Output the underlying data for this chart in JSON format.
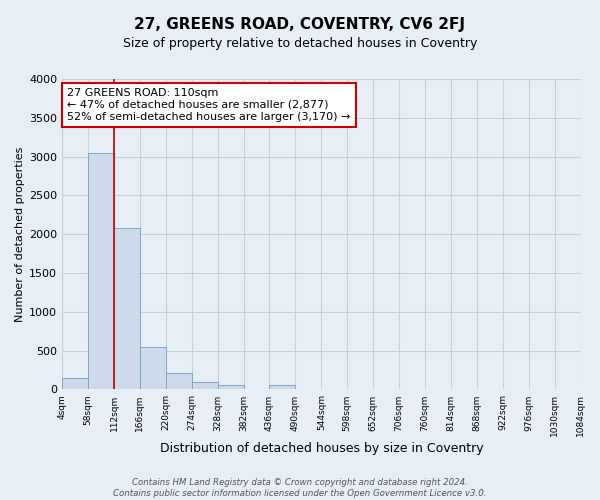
{
  "title": "27, GREENS ROAD, COVENTRY, CV6 2FJ",
  "subtitle": "Size of property relative to detached houses in Coventry",
  "xlabel": "Distribution of detached houses by size in Coventry",
  "ylabel": "Number of detached properties",
  "bin_edges": [
    4,
    58,
    112,
    166,
    220,
    274,
    328,
    382,
    436,
    490,
    544,
    598,
    652,
    706,
    760,
    814,
    868,
    922,
    976,
    1030,
    1084
  ],
  "bin_labels": [
    "4sqm",
    "58sqm",
    "112sqm",
    "166sqm",
    "220sqm",
    "274sqm",
    "328sqm",
    "382sqm",
    "436sqm",
    "490sqm",
    "544sqm",
    "598sqm",
    "652sqm",
    "706sqm",
    "760sqm",
    "814sqm",
    "868sqm",
    "922sqm",
    "976sqm",
    "1030sqm",
    "1084sqm"
  ],
  "counts": [
    150,
    3050,
    2080,
    550,
    210,
    90,
    55,
    5,
    55,
    5,
    0,
    0,
    0,
    0,
    0,
    0,
    0,
    0,
    0,
    0
  ],
  "bar_color": "#ccdaeb",
  "bar_edge_color": "#7aaac8",
  "vline_x": 112,
  "vline_color": "#cc0000",
  "ylim": [
    0,
    4000
  ],
  "yticks": [
    0,
    500,
    1000,
    1500,
    2000,
    2500,
    3000,
    3500,
    4000
  ],
  "grid_color": "#c5d0dd",
  "bg_color": "#e8eef5",
  "annotation_title": "27 GREENS ROAD: 110sqm",
  "annotation_line1": "← 47% of detached houses are smaller (2,877)",
  "annotation_line2": "52% of semi-detached houses are larger (3,170) →",
  "annotation_box_color": "#ffffff",
  "annotation_border_color": "#cc0000",
  "footer_line1": "Contains HM Land Registry data © Crown copyright and database right 2024.",
  "footer_line2": "Contains public sector information licensed under the Open Government Licence v3.0."
}
